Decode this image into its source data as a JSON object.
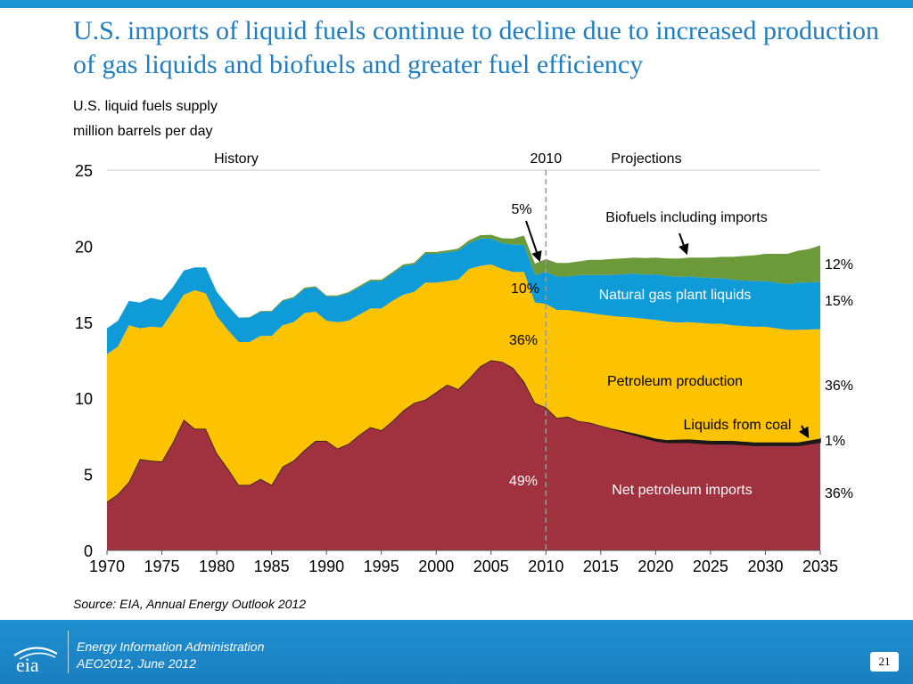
{
  "slide": {
    "title": "U.S. imports of liquid fuels continue to decline due to increased production of gas liquids and biofuels and greater fuel efficiency",
    "subtitle_line1": "U.S. liquid fuels supply",
    "subtitle_line2": "million barrels per day",
    "source": "Source:  EIA, Annual Energy Outlook 2012",
    "footer_line1": "Energy Information Administration",
    "footer_line2": "AEO2012, June 2012",
    "logo_text": "eia",
    "page_number": "21"
  },
  "colors": {
    "net_imports": "#a0323f",
    "petroleum": "#fdc301",
    "ngpl": "#0f9bd7",
    "biofuels": "#6c9a3a",
    "coal": "#1a1a1a",
    "title": "#1f7ec1",
    "footer": "#1c94d2"
  },
  "chart_data": {
    "type": "area",
    "stacked": true,
    "xlim": [
      1970,
      2035
    ],
    "ylim": [
      0,
      25
    ],
    "x_ticks": [
      1970,
      1975,
      1980,
      1985,
      1990,
      1995,
      2000,
      2005,
      2010,
      2015,
      2020,
      2025,
      2030,
      2035
    ],
    "y_ticks": [
      0,
      5,
      10,
      15,
      20,
      25
    ],
    "grid": "top-line-only",
    "divider_year": 2010,
    "divider_label": "2010",
    "history_label": "History",
    "projections_label": "Projections",
    "x": [
      1970,
      1971,
      1972,
      1973,
      1974,
      1975,
      1976,
      1977,
      1978,
      1979,
      1980,
      1981,
      1982,
      1983,
      1984,
      1985,
      1986,
      1987,
      1988,
      1989,
      1990,
      1991,
      1992,
      1993,
      1994,
      1995,
      1996,
      1997,
      1998,
      1999,
      2000,
      2001,
      2002,
      2003,
      2004,
      2005,
      2006,
      2007,
      2008,
      2009,
      2010,
      2011,
      2012,
      2013,
      2014,
      2015,
      2016,
      2017,
      2018,
      2019,
      2020,
      2021,
      2022,
      2023,
      2024,
      2025,
      2026,
      2027,
      2028,
      2029,
      2030,
      2031,
      2032,
      2033,
      2034,
      2035
    ],
    "series": [
      {
        "name": "Net petroleum imports",
        "label_share": "36%",
        "history_share": "49%",
        "values": [
          3.2,
          3.7,
          4.5,
          6.0,
          5.9,
          5.85,
          7.1,
          8.6,
          8.0,
          8.0,
          6.4,
          5.4,
          4.3,
          4.3,
          4.7,
          4.3,
          5.5,
          5.9,
          6.6,
          7.2,
          7.2,
          6.7,
          7.0,
          7.6,
          8.1,
          7.9,
          8.5,
          9.2,
          9.7,
          9.9,
          10.4,
          10.9,
          10.6,
          11.3,
          12.1,
          12.5,
          12.4,
          12.0,
          11.1,
          9.7,
          9.4,
          8.7,
          8.8,
          8.5,
          8.4,
          8.2,
          8.0,
          7.8,
          7.6,
          7.4,
          7.2,
          7.1,
          7.1,
          7.1,
          7.05,
          7.0,
          7.0,
          7.0,
          6.95,
          6.9,
          6.9,
          6.9,
          6.9,
          6.9,
          7.0,
          7.1
        ]
      },
      {
        "name": "Liquids from coal",
        "label_share": "1%",
        "values": [
          0,
          0,
          0,
          0,
          0,
          0,
          0,
          0,
          0,
          0,
          0,
          0,
          0,
          0,
          0,
          0,
          0,
          0,
          0,
          0,
          0,
          0,
          0,
          0,
          0,
          0,
          0,
          0,
          0,
          0,
          0,
          0,
          0,
          0,
          0,
          0,
          0,
          0,
          0,
          0,
          0,
          0,
          0,
          0,
          0,
          0,
          0.01,
          0.05,
          0.1,
          0.12,
          0.15,
          0.15,
          0.18,
          0.2,
          0.2,
          0.2,
          0.2,
          0.2,
          0.2,
          0.2,
          0.2,
          0.2,
          0.2,
          0.2,
          0.22,
          0.25
        ]
      },
      {
        "name": "Petroleum production",
        "label_share": "36%",
        "history_share": "36%",
        "values": [
          9.7,
          9.7,
          10.3,
          8.6,
          8.8,
          8.8,
          8.6,
          8.2,
          9.1,
          8.9,
          9.0,
          9.1,
          9.4,
          9.4,
          9.4,
          9.8,
          9.3,
          9.1,
          9.0,
          8.5,
          7.9,
          8.3,
          8.1,
          7.9,
          7.8,
          8.0,
          7.9,
          7.6,
          7.3,
          7.7,
          7.2,
          6.8,
          7.2,
          7.2,
          6.6,
          6.3,
          6.1,
          6.3,
          7.2,
          6.6,
          6.8,
          7.1,
          7.0,
          7.2,
          7.2,
          7.3,
          7.4,
          7.5,
          7.6,
          7.7,
          7.8,
          7.8,
          7.7,
          7.7,
          7.7,
          7.7,
          7.7,
          7.6,
          7.6,
          7.6,
          7.6,
          7.5,
          7.4,
          7.4,
          7.3,
          7.2
        ]
      },
      {
        "name": "Natural gas plant liquids",
        "label_share": "15%",
        "history_share": "10%",
        "values": [
          1.7,
          1.7,
          1.6,
          1.7,
          1.9,
          1.8,
          1.6,
          1.6,
          1.5,
          1.7,
          1.6,
          1.6,
          1.6,
          1.6,
          1.6,
          1.6,
          1.6,
          1.6,
          1.6,
          1.6,
          1.6,
          1.7,
          1.8,
          1.8,
          1.8,
          1.8,
          1.8,
          1.9,
          1.8,
          1.9,
          1.9,
          1.9,
          1.9,
          1.7,
          1.8,
          1.7,
          1.7,
          1.8,
          1.8,
          1.8,
          2.1,
          2.2,
          2.2,
          2.4,
          2.5,
          2.6,
          2.7,
          2.8,
          2.9,
          2.9,
          3.0,
          3.0,
          3.0,
          3.0,
          3.0,
          3.0,
          3.0,
          3.0,
          3.0,
          3.0,
          3.0,
          3.0,
          3.0,
          3.1,
          3.1,
          3.1
        ]
      },
      {
        "name": "Biofuels including imports",
        "label_share": "12%",
        "history_share": "5%",
        "values": [
          0,
          0,
          0,
          0,
          0,
          0,
          0,
          0,
          0,
          0,
          0,
          0,
          0.01,
          0.03,
          0.04,
          0.05,
          0.06,
          0.06,
          0.07,
          0.07,
          0.06,
          0.07,
          0.08,
          0.09,
          0.1,
          0.1,
          0.09,
          0.1,
          0.11,
          0.11,
          0.12,
          0.12,
          0.14,
          0.19,
          0.22,
          0.25,
          0.32,
          0.4,
          0.6,
          0.75,
          0.85,
          0.9,
          0.9,
          0.9,
          1.0,
          1.0,
          1.05,
          1.05,
          1.05,
          1.1,
          1.1,
          1.15,
          1.2,
          1.25,
          1.3,
          1.35,
          1.4,
          1.5,
          1.6,
          1.7,
          1.8,
          1.9,
          2.0,
          2.1,
          2.2,
          2.4
        ]
      }
    ]
  }
}
